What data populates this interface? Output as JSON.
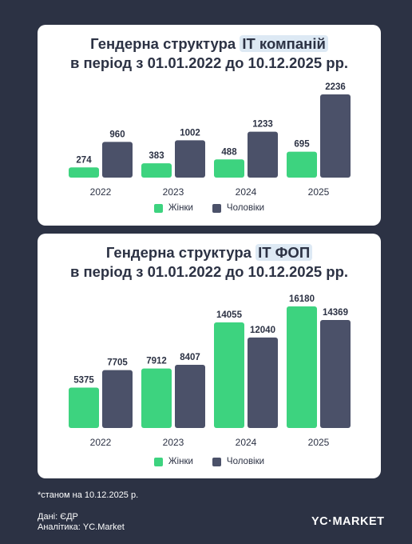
{
  "colors": {
    "women": "#3dd37f",
    "men": "#4b5169",
    "text": "#2c3244",
    "highlight": "#dde9f4"
  },
  "legend": {
    "women": "Жінки",
    "men": "Чоловіки"
  },
  "chart_data": [
    {
      "type": "bar",
      "title_pre": "Гендерна структура ",
      "title_highlight": "IT компаній",
      "title_line2": "в період з 01.01.2022 до 10.12.2025 рр.",
      "categories": [
        "2022",
        "2023",
        "2024",
        "2025"
      ],
      "series": [
        {
          "name": "Жінки",
          "values": [
            274,
            383,
            488,
            695
          ]
        },
        {
          "name": "Чоловіки",
          "values": [
            960,
            1002,
            1233,
            2236
          ]
        }
      ],
      "ylim": [
        0,
        2236
      ]
    },
    {
      "type": "bar",
      "title_pre": "Гендерна структура ",
      "title_highlight": "IT ФОП",
      "title_line2": "в період з 01.01.2022 до 10.12.2025 рр.",
      "categories": [
        "2022",
        "2023",
        "2024",
        "2025"
      ],
      "series": [
        {
          "name": "Жінки",
          "values": [
            5375,
            7912,
            14055,
            16180
          ]
        },
        {
          "name": "Чоловіки",
          "values": [
            7705,
            8407,
            12040,
            14369
          ]
        }
      ],
      "ylim": [
        0,
        16180
      ]
    }
  ],
  "footer": {
    "note": "*станом на 10.12.2025 р.",
    "source": "Дані: ЄДР",
    "analytics": "Аналітика: YC.Market",
    "logo": "YC·MARKET"
  }
}
